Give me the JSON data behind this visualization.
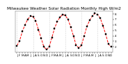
{
  "title": "Milwaukee Weather Solar Radiation Monthly High W/m2",
  "x_values": [
    1,
    2,
    3,
    4,
    5,
    6,
    7,
    8,
    9,
    10,
    11,
    12,
    13,
    14,
    15,
    16,
    17,
    18,
    19,
    20,
    21,
    22,
    23,
    24,
    25,
    26,
    27,
    28,
    29,
    30,
    31,
    32,
    33,
    34,
    35,
    36
  ],
  "y_values": [
    220,
    310,
    480,
    600,
    700,
    760,
    750,
    670,
    510,
    360,
    200,
    150,
    200,
    370,
    540,
    660,
    740,
    790,
    770,
    700,
    560,
    400,
    230,
    180,
    230,
    400,
    570,
    680,
    760,
    810,
    790,
    720,
    580,
    430,
    250,
    200
  ],
  "ylim": [
    100,
    850
  ],
  "yticks": [
    200,
    300,
    400,
    500,
    600,
    700,
    800
  ],
  "ytick_labels": [
    "2",
    "3",
    "4",
    "5",
    "6",
    "7",
    "8"
  ],
  "line_color": "#ff0000",
  "marker_color": "#000000",
  "marker_size": 1.5,
  "bg_color": "#ffffff",
  "grid_color": "#999999",
  "title_fontsize": 4.2,
  "tick_fontsize": 3.0,
  "lw": 0.7
}
